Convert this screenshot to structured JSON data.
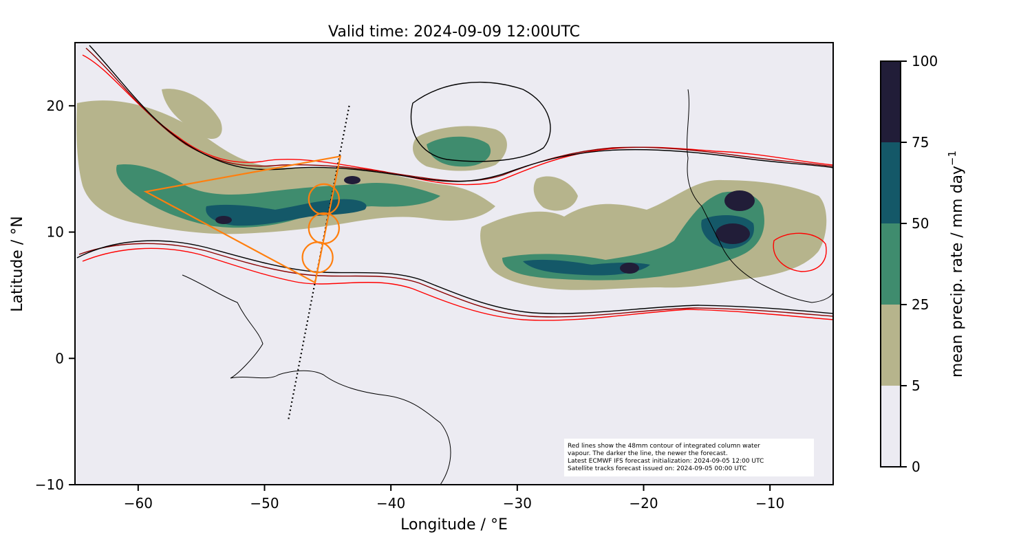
{
  "title": "Valid time: 2024-09-09 12:00UTC",
  "xlabel": "Longitude / °E",
  "ylabel": "Latitude / °N",
  "colorbar_label": "mean precip. rate / mm day",
  "colorbar_label_exponent": "−1",
  "note_lines": [
    "Red lines show the 48mm contour of integrated column water",
    "vapour. The darker the line, the newer the forecast.",
    "Latest ECMWF IFS forecast initialization: 2024-09-05 12:00 UTC",
    "Satellite tracks forecast issued on: 2024-09-05 00:00 UTC"
  ],
  "x_ticks": [
    {
      "value": -60,
      "label": "−60"
    },
    {
      "value": -50,
      "label": "−50"
    },
    {
      "value": -40,
      "label": "−40"
    },
    {
      "value": -30,
      "label": "−30"
    },
    {
      "value": -20,
      "label": "−20"
    },
    {
      "value": -10,
      "label": "−10"
    }
  ],
  "y_ticks": [
    {
      "value": 20,
      "label": "20"
    },
    {
      "value": 10,
      "label": "10"
    },
    {
      "value": 0,
      "label": "0"
    },
    {
      "value": -10,
      "label": "−10"
    }
  ],
  "colorbar_levels": [
    {
      "from": 0,
      "to": 5,
      "color": "#ecebf2"
    },
    {
      "from": 5,
      "to": 25,
      "color": "#b6b48c"
    },
    {
      "from": 25,
      "to": 50,
      "color": "#3f8c6e"
    },
    {
      "from": 50,
      "to": 75,
      "color": "#145868"
    },
    {
      "from": 75,
      "to": 100,
      "color": "#211d38"
    }
  ],
  "colorbar_ticks": [
    {
      "value": 0,
      "label": "0"
    },
    {
      "value": 5,
      "label": "5"
    },
    {
      "value": 25,
      "label": "25"
    },
    {
      "value": 50,
      "label": "50"
    },
    {
      "value": 75,
      "label": "75"
    },
    {
      "value": 100,
      "label": "100"
    }
  ],
  "map_extent": {
    "lon": [
      -65,
      -5
    ],
    "lat": [
      -10,
      25
    ]
  },
  "colors": {
    "background": "#ecebf2",
    "contour_old": "#ff0000",
    "contour_mid": "#8b0000",
    "contour_new": "#000000",
    "flight_track": "#ff7f0e",
    "coastline": "#000000"
  },
  "satellite_track": [
    [
      -43.3,
      20
    ],
    [
      -48.1,
      -4.8
    ]
  ],
  "flight_polygon": [
    [
      -59.4,
      13.2
    ],
    [
      -44,
      16
    ],
    [
      -46,
      6
    ]
  ],
  "flight_circles": [
    {
      "lon": -45.3,
      "lat": 12.6,
      "radius_deg": 1.2
    },
    {
      "lon": -45.3,
      "lat": 10.3,
      "radius_deg": 1.2
    },
    {
      "lon": -45.8,
      "lat": 8.0,
      "radius_deg": 1.2
    }
  ]
}
